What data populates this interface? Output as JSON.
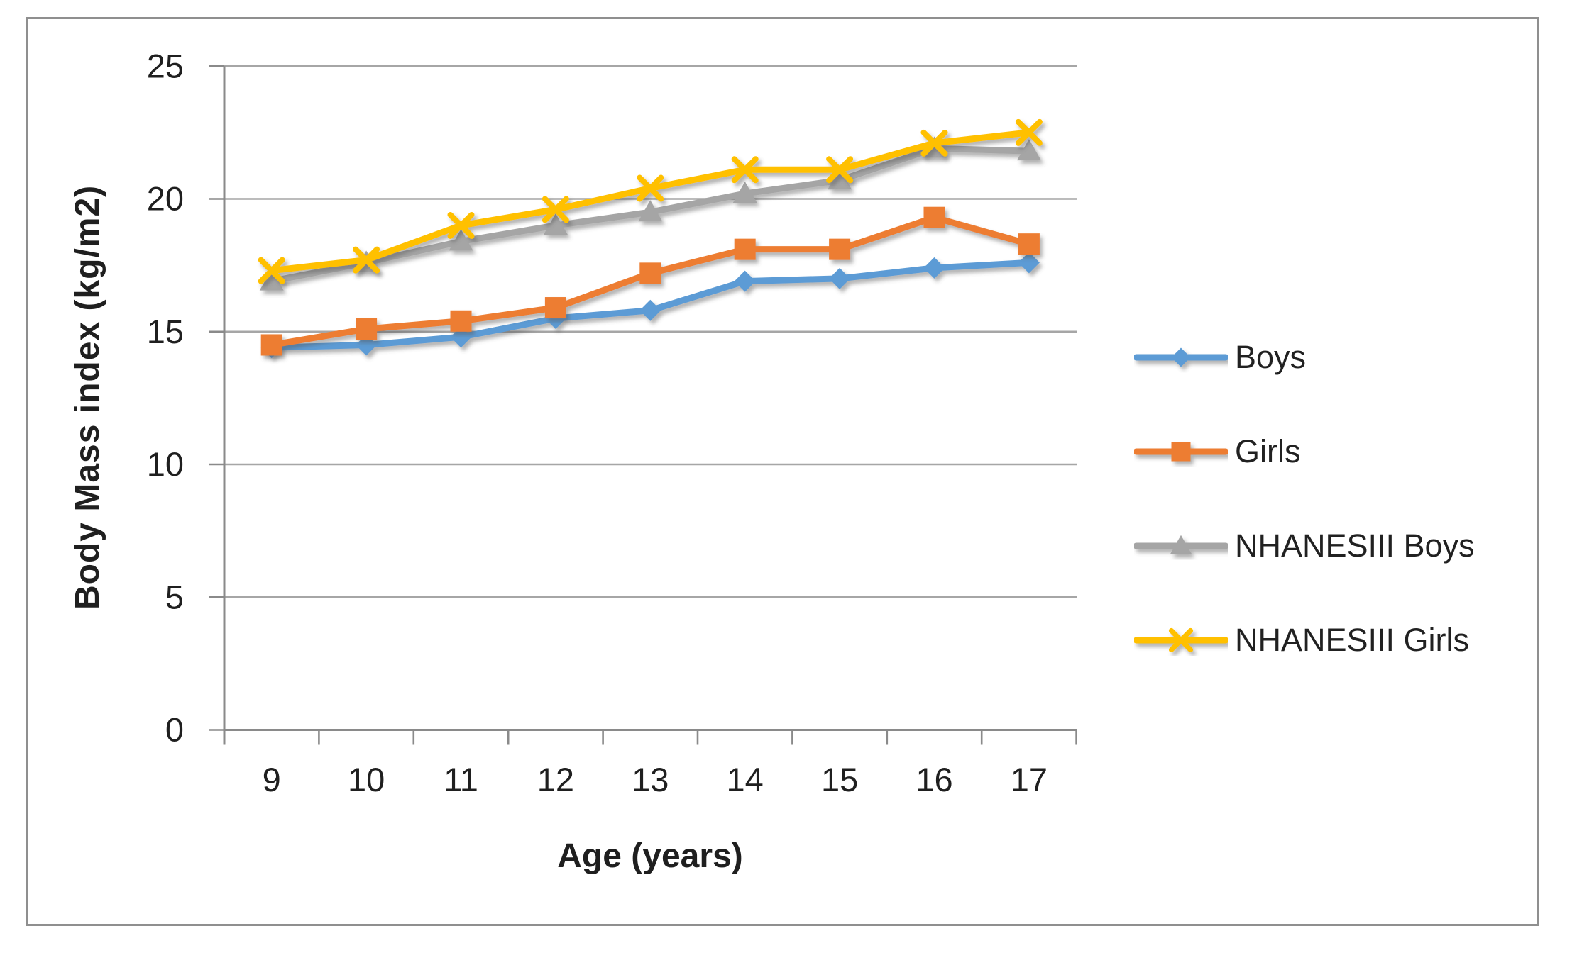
{
  "figure": {
    "background_color": "#ffffff",
    "border_color": "#8f8f8f"
  },
  "chart_data": {
    "type": "line",
    "title": "",
    "xlabel": "Age (years)",
    "ylabel": "Body Mass index (kg/m2)",
    "categories": [
      "9",
      "10",
      "11",
      "12",
      "13",
      "14",
      "15",
      "16",
      "17"
    ],
    "y_ticks": [
      0,
      5,
      10,
      15,
      20,
      25
    ],
    "ylim": [
      0,
      25
    ],
    "grid": "horizontal",
    "legend_position": "right",
    "axis_color": "#8a8a8a",
    "gridline_color": "#a6a6a6",
    "text_color": "#1f1f1f",
    "series": [
      {
        "name": "Boys",
        "color": "#5B9BD5",
        "marker": "diamond",
        "values": [
          14.4,
          14.5,
          14.8,
          15.5,
          15.8,
          16.9,
          17.0,
          17.4,
          17.6
        ]
      },
      {
        "name": "Girls",
        "color": "#ED7D31",
        "marker": "square",
        "values": [
          14.5,
          15.1,
          15.4,
          15.9,
          17.2,
          18.1,
          18.1,
          19.3,
          18.3
        ]
      },
      {
        "name": "NHANESIII Boys",
        "color": "#A5A5A5",
        "marker": "triangle",
        "values": [
          16.9,
          17.6,
          18.4,
          19.0,
          19.5,
          20.2,
          20.7,
          21.9,
          21.8
        ]
      },
      {
        "name": "NHANESIII Girls",
        "color": "#FFC000",
        "marker": "x",
        "values": [
          17.3,
          17.7,
          19.0,
          19.6,
          20.4,
          21.1,
          21.1,
          22.1,
          22.5
        ]
      }
    ]
  }
}
